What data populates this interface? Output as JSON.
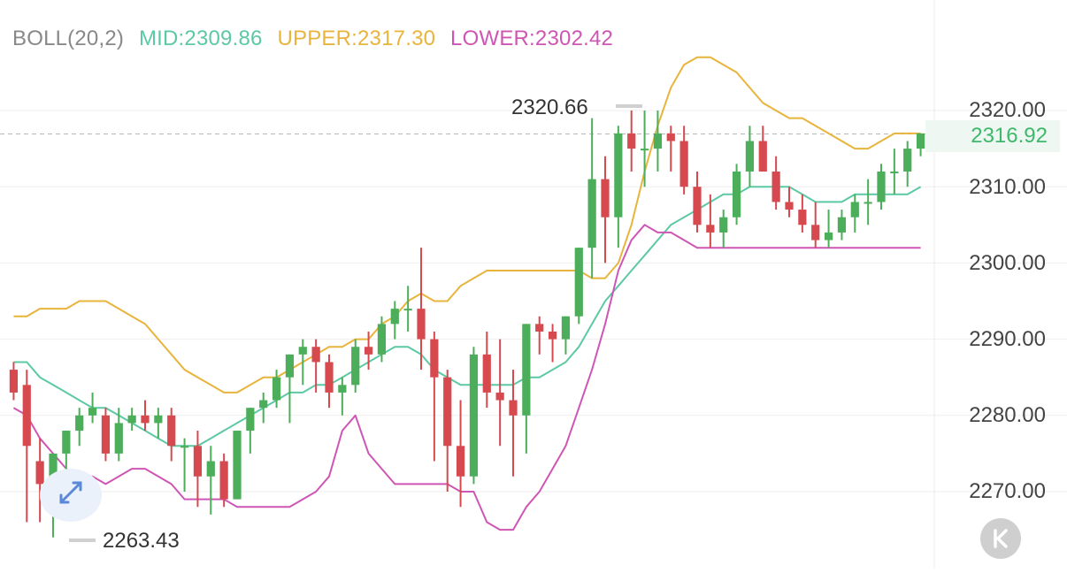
{
  "legend": {
    "boll": "BOLL(20,2)",
    "mid": "MID:2309.86",
    "upper": "UPPER:2317.30",
    "lower": "LOWER:2302.42"
  },
  "colors": {
    "mid": "#5cc9a4",
    "upper": "#e8b43c",
    "lower": "#cf55b5",
    "up_candle": "#4cae5a",
    "down_candle": "#d64a4f",
    "boll_label": "#888888",
    "grid": "#eeeeee",
    "price_tag_text": "#3eb86a"
  },
  "axis": {
    "labels": [
      "2320.00",
      "2310.00",
      "2300.00",
      "2290.00",
      "2280.00",
      "2270.00"
    ]
  },
  "current_price": "2316.92",
  "high_label": "2320.66",
  "low_label": "2263.43",
  "icons": {
    "back": "collapse-left-icon",
    "zoom": "expand-arrows-icon"
  },
  "chart_data": {
    "type": "candlestick",
    "y_range": [
      2262,
      2328
    ],
    "series_count": 70,
    "upper": [
      2293,
      2293,
      2294,
      2294,
      2294,
      2295,
      2295,
      2295,
      2294,
      2293,
      2292,
      2290,
      2288,
      2286,
      2285,
      2284,
      2283,
      2283,
      2284,
      2285,
      2285,
      2286,
      2287,
      2288,
      2289,
      2289,
      2290,
      2290,
      2292,
      2293,
      2295,
      2296,
      2295,
      2295,
      2297,
      2298,
      2299,
      2299,
      2299,
      2299,
      2299,
      2299,
      2299,
      2299,
      2298,
      2298,
      2300,
      2305,
      2312,
      2318,
      2323,
      2326,
      2327,
      2327,
      2326,
      2325,
      2323,
      2321,
      2320,
      2319,
      2319,
      2318,
      2317,
      2316,
      2315,
      2315,
      2316,
      2317,
      2317,
      2317
    ],
    "mid": [
      2287,
      2287,
      2285,
      2284,
      2283,
      2282,
      2281,
      2281,
      2280,
      2279,
      2278,
      2277,
      2276,
      2276,
      2276,
      2277,
      2278,
      2279,
      2280,
      2281,
      2282,
      2283,
      2283,
      2284,
      2284,
      2285,
      2286,
      2287,
      2288,
      2289,
      2289,
      2288,
      2286,
      2285,
      2284,
      2284,
      2284,
      2284,
      2284,
      2285,
      2285,
      2286,
      2287,
      2289,
      2292,
      2295,
      2297,
      2299,
      2301,
      2303,
      2305,
      2306,
      2307,
      2308,
      2309,
      2309,
      2310,
      2310,
      2310,
      2310,
      2309,
      2308,
      2308,
      2308,
      2309,
      2309,
      2309,
      2309,
      2309,
      2310
    ],
    "lower": [
      2281,
      2280,
      2277,
      2275,
      2273,
      2272,
      2272,
      2271,
      2272,
      2273,
      2273,
      2272,
      2271,
      2269,
      2269,
      2269,
      2269,
      2268,
      2268,
      2268,
      2268,
      2268,
      2269,
      2270,
      2272,
      2278,
      2280,
      2275,
      2273,
      2271,
      2271,
      2271,
      2271,
      2271,
      2270,
      2270,
      2266,
      2265,
      2265,
      2268,
      2270,
      2273,
      2276,
      2281,
      2286,
      2292,
      2299,
      2303,
      2305,
      2304,
      2304,
      2303,
      2302,
      2302,
      2302,
      2302,
      2302,
      2302,
      2302,
      2302,
      2302,
      2302,
      2302,
      2302,
      2302,
      2302,
      2302,
      2302,
      2302,
      2302
    ],
    "ohlc": [
      [
        2286,
        2287,
        2282,
        2283
      ],
      [
        2284,
        2286,
        2266,
        2276
      ],
      [
        2274,
        2277,
        2266,
        2271
      ],
      [
        2272,
        2275,
        2264,
        2275
      ],
      [
        2275,
        2278,
        2270,
        2278
      ],
      [
        2278,
        2281,
        2276,
        2280
      ],
      [
        2280,
        2283,
        2279,
        2281
      ],
      [
        2280,
        2281,
        2274,
        2275
      ],
      [
        2275,
        2281,
        2274,
        2279
      ],
      [
        2279,
        2281,
        2278,
        2280
      ],
      [
        2280,
        2282,
        2278,
        2279
      ],
      [
        2279,
        2281,
        2277,
        2280
      ],
      [
        2280,
        2281,
        2274,
        2276
      ],
      [
        2276,
        2277,
        2270,
        2276
      ],
      [
        2276,
        2278,
        2268,
        2272
      ],
      [
        2272,
        2276,
        2267,
        2274
      ],
      [
        2274,
        2275,
        2268,
        2269
      ],
      [
        2269,
        2278,
        2269,
        2278
      ],
      [
        2278,
        2281,
        2275,
        2281
      ],
      [
        2281,
        2283,
        2279,
        2282
      ],
      [
        2282,
        2286,
        2281,
        2285
      ],
      [
        2285,
        2288,
        2279,
        2288
      ],
      [
        2288,
        2290,
        2284,
        2289
      ],
      [
        2289,
        2290,
        2283,
        2287
      ],
      [
        2287,
        2288,
        2281,
        2283
      ],
      [
        2283,
        2285,
        2280,
        2284
      ],
      [
        2284,
        2290,
        2283,
        2289
      ],
      [
        2289,
        2291,
        2286,
        2288
      ],
      [
        2288,
        2293,
        2287,
        2292
      ],
      [
        2292,
        2295,
        2290,
        2294
      ],
      [
        2294,
        2297,
        2291,
        2294
      ],
      [
        2294,
        2302,
        2286,
        2290
      ],
      [
        2290,
        2291,
        2274,
        2285
      ],
      [
        2285,
        2286,
        2270,
        2276
      ],
      [
        2276,
        2282,
        2268,
        2272
      ],
      [
        2272,
        2289,
        2271,
        2288
      ],
      [
        2288,
        2291,
        2281,
        2283
      ],
      [
        2283,
        2290,
        2276,
        2282
      ],
      [
        2282,
        2286,
        2272,
        2280
      ],
      [
        2280,
        2292,
        2275,
        2292
      ],
      [
        2292,
        2293,
        2288,
        2291
      ],
      [
        2291,
        2292,
        2287,
        2290
      ],
      [
        2290,
        2293,
        2288,
        2293
      ],
      [
        2293,
        2302,
        2292,
        2302
      ],
      [
        2302,
        2319,
        2298,
        2311
      ],
      [
        2311,
        2314,
        2300,
        2306
      ],
      [
        2306,
        2318,
        2302,
        2317
      ],
      [
        2317,
        2320,
        2312,
        2315
      ],
      [
        2315,
        2320,
        2310,
        2315
      ],
      [
        2315,
        2320,
        2312,
        2317
      ],
      [
        2317,
        2318,
        2312,
        2316
      ],
      [
        2316,
        2318,
        2309,
        2310
      ],
      [
        2310,
        2312,
        2304,
        2305
      ],
      [
        2305,
        2309,
        2302,
        2304
      ],
      [
        2304,
        2307,
        2302,
        2306
      ],
      [
        2306,
        2313,
        2305,
        2312
      ],
      [
        2312,
        2318,
        2310,
        2316
      ],
      [
        2316,
        2318,
        2312,
        2312
      ],
      [
        2312,
        2314,
        2307,
        2308
      ],
      [
        2308,
        2310,
        2306,
        2307
      ],
      [
        2307,
        2309,
        2304,
        2305
      ],
      [
        2305,
        2308,
        2302,
        2303
      ],
      [
        2303,
        2307,
        2302,
        2304
      ],
      [
        2304,
        2307,
        2303,
        2306
      ],
      [
        2306,
        2309,
        2304,
        2308
      ],
      [
        2308,
        2311,
        2305,
        2308
      ],
      [
        2308,
        2313,
        2307,
        2312
      ],
      [
        2312,
        2315,
        2309,
        2312
      ],
      [
        2312,
        2316,
        2310,
        2315
      ],
      [
        2315,
        2317,
        2314,
        2317
      ]
    ]
  }
}
